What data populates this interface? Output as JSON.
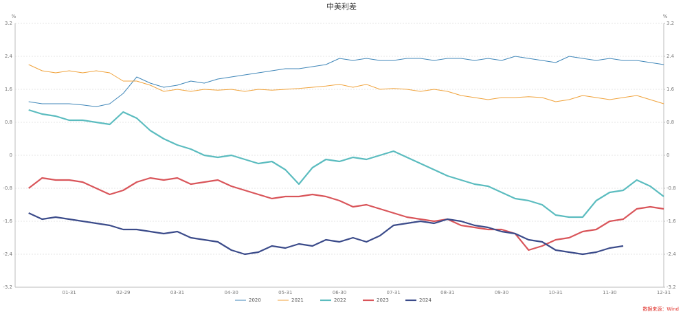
{
  "chart_data": {
    "type": "line",
    "title": "中美利差",
    "y_label": "%",
    "y2_label": "%",
    "source": "数据来源：Wind",
    "categories": [
      null,
      null,
      null,
      "01-31",
      null,
      null,
      null,
      "02-29",
      null,
      null,
      null,
      "03-31",
      null,
      null,
      null,
      "04-30",
      null,
      null,
      null,
      "05-31",
      null,
      null,
      null,
      "06-30",
      null,
      null,
      null,
      "07-31",
      null,
      null,
      null,
      "08-31",
      null,
      null,
      null,
      "09-30",
      null,
      null,
      null,
      "10-31",
      null,
      null,
      null,
      "11-30",
      null,
      null,
      null,
      "12-31"
    ],
    "ylim": [
      -3.2,
      3.2
    ],
    "yticks": [
      -3.2,
      -2.4,
      -1.6,
      -0.8,
      0,
      0.8,
      1.6,
      2.4,
      3.2
    ],
    "y2lim": [
      -3.2,
      3.2
    ],
    "y2ticks": [
      -3.2,
      -2.4,
      -1.6,
      -0.8,
      0,
      0.8,
      1.6,
      2.4,
      3.2
    ],
    "grid": true,
    "legend": "bottom",
    "series": [
      {
        "name": "2020",
        "color": "#3f86b8",
        "line_width": 1,
        "values": [
          1.3,
          1.25,
          1.25,
          1.25,
          1.22,
          1.18,
          1.25,
          1.5,
          1.9,
          1.75,
          1.65,
          1.7,
          1.8,
          1.75,
          1.85,
          1.9,
          1.95,
          2.0,
          2.05,
          2.1,
          2.1,
          2.15,
          2.2,
          2.35,
          2.3,
          2.35,
          2.3,
          2.3,
          2.35,
          2.35,
          2.3,
          2.35,
          2.35,
          2.3,
          2.35,
          2.3,
          2.4,
          2.35,
          2.3,
          2.25,
          2.4,
          2.35,
          2.3,
          2.35,
          2.3,
          2.3,
          2.25,
          2.2
        ]
      },
      {
        "name": "2021",
        "color": "#f0a23a",
        "line_width": 1,
        "values": [
          2.2,
          2.05,
          2.0,
          2.05,
          2.0,
          2.05,
          2.0,
          1.8,
          1.8,
          1.7,
          1.55,
          1.6,
          1.55,
          1.6,
          1.58,
          1.6,
          1.55,
          1.6,
          1.58,
          1.6,
          1.62,
          1.65,
          1.68,
          1.72,
          1.65,
          1.72,
          1.6,
          1.62,
          1.6,
          1.55,
          1.6,
          1.55,
          1.45,
          1.4,
          1.35,
          1.4,
          1.4,
          1.42,
          1.4,
          1.3,
          1.35,
          1.45,
          1.4,
          1.35,
          1.4,
          1.45,
          1.35,
          1.25
        ]
      },
      {
        "name": "2022",
        "color": "#5bbcbf",
        "line_width": 2.2,
        "values": [
          1.1,
          1.0,
          0.95,
          0.85,
          0.85,
          0.8,
          0.75,
          1.05,
          0.9,
          0.6,
          0.4,
          0.25,
          0.15,
          0.0,
          -0.05,
          0.0,
          -0.1,
          -0.2,
          -0.15,
          -0.35,
          -0.7,
          -0.3,
          -0.1,
          -0.15,
          -0.05,
          -0.1,
          0.0,
          0.1,
          -0.05,
          -0.2,
          -0.35,
          -0.5,
          -0.6,
          -0.7,
          -0.75,
          -0.9,
          -1.05,
          -1.1,
          -1.2,
          -1.45,
          -1.5,
          -1.5,
          -1.1,
          -0.9,
          -0.85,
          -0.6,
          -0.75,
          -1.0
        ]
      },
      {
        "name": "2023",
        "color": "#d9555a",
        "line_width": 2.2,
        "values": [
          -0.8,
          -0.55,
          -0.6,
          -0.6,
          -0.65,
          -0.8,
          -0.95,
          -0.85,
          -0.65,
          -0.55,
          -0.6,
          -0.55,
          -0.7,
          -0.65,
          -0.6,
          -0.75,
          -0.85,
          -0.95,
          -1.05,
          -1.0,
          -1.0,
          -0.95,
          -1.0,
          -1.1,
          -1.25,
          -1.2,
          -1.3,
          -1.4,
          -1.5,
          -1.55,
          -1.6,
          -1.55,
          -1.7,
          -1.75,
          -1.8,
          -1.8,
          -1.9,
          -2.3,
          -2.2,
          -2.05,
          -2.0,
          -1.85,
          -1.8,
          -1.6,
          -1.55,
          -1.3,
          -1.25,
          -1.3
        ]
      },
      {
        "name": "2024",
        "color": "#3b4b8a",
        "line_width": 2.2,
        "values": [
          -1.4,
          -1.55,
          -1.5,
          -1.55,
          -1.6,
          -1.65,
          -1.7,
          -1.8,
          -1.8,
          -1.85,
          -1.9,
          -1.85,
          -2.0,
          -2.05,
          -2.1,
          -2.3,
          -2.4,
          -2.35,
          -2.2,
          -2.25,
          -2.15,
          -2.2,
          -2.05,
          -2.1,
          -2.0,
          -2.1,
          -1.95,
          -1.7,
          -1.65,
          -1.6,
          -1.65,
          -1.55,
          -1.6,
          -1.7,
          -1.75,
          -1.85,
          -1.9,
          -2.05,
          -2.1,
          -2.3,
          -2.35,
          -2.4,
          -2.35,
          -2.25,
          -2.2,
          null,
          null,
          null
        ]
      }
    ]
  }
}
